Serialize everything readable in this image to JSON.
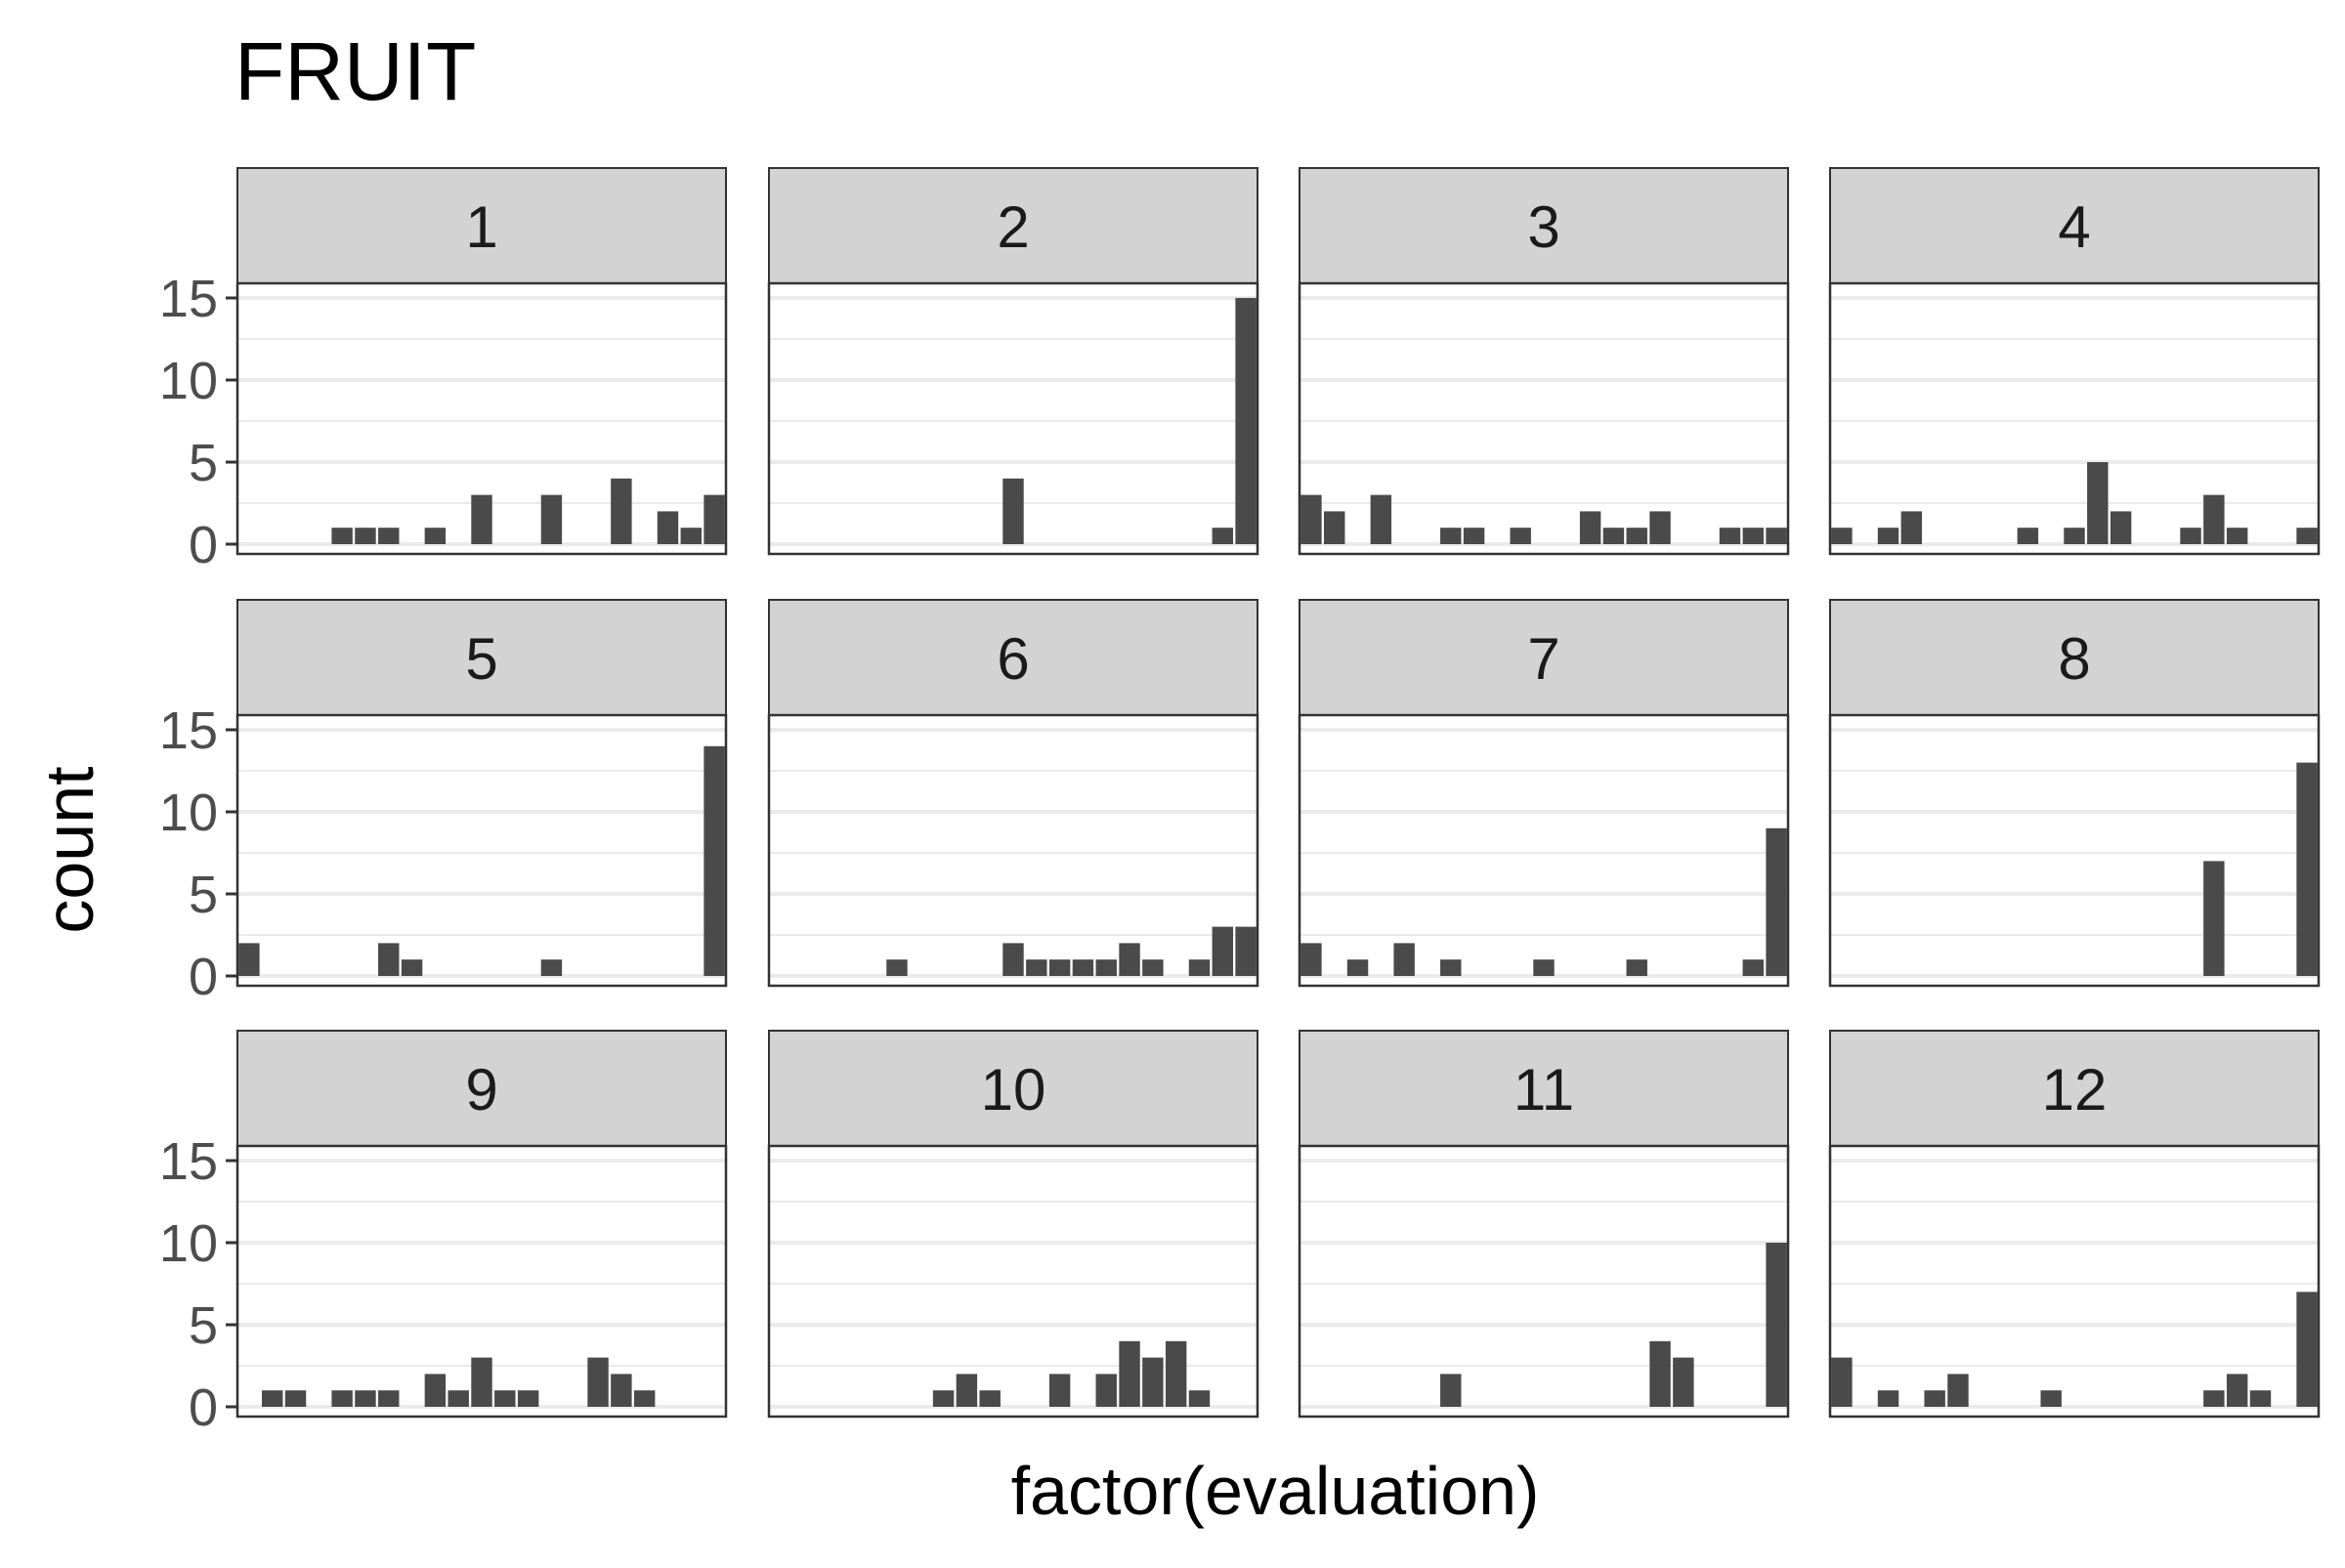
{
  "chart_data": {
    "type": "bar",
    "title": "FRUIT",
    "xlabel": "factor(evaluation)",
    "ylabel": "count",
    "ylim": [
      0,
      15
    ],
    "yticks": [
      0,
      5,
      10,
      15
    ],
    "grid": true,
    "n_categories": 21,
    "facet_rows": 3,
    "facet_cols": 4,
    "bar_color": "#4a4a4a",
    "strip_color": "#d3d3d3",
    "gridline_color": "#ebebeb",
    "facets": [
      {
        "label": "1",
        "values": [
          0,
          0,
          0,
          0,
          1,
          1,
          1,
          0,
          1,
          0,
          3,
          0,
          0,
          3,
          0,
          0,
          4,
          0,
          2,
          1,
          3
        ]
      },
      {
        "label": "2",
        "values": [
          0,
          0,
          0,
          0,
          0,
          0,
          0,
          0,
          0,
          0,
          4,
          0,
          0,
          0,
          0,
          0,
          0,
          0,
          0,
          1,
          15
        ]
      },
      {
        "label": "3",
        "values": [
          3,
          2,
          0,
          3,
          0,
          0,
          1,
          1,
          0,
          1,
          0,
          0,
          2,
          1,
          1,
          2,
          0,
          0,
          1,
          1,
          1
        ]
      },
      {
        "label": "4",
        "values": [
          1,
          0,
          1,
          2,
          0,
          0,
          0,
          0,
          1,
          0,
          1,
          5,
          2,
          0,
          0,
          1,
          3,
          1,
          0,
          0,
          1
        ]
      },
      {
        "label": "5",
        "values": [
          2,
          0,
          0,
          0,
          0,
          0,
          2,
          1,
          0,
          0,
          0,
          0,
          0,
          1,
          0,
          0,
          0,
          0,
          0,
          0,
          14
        ]
      },
      {
        "label": "6",
        "values": [
          0,
          0,
          0,
          0,
          0,
          1,
          0,
          0,
          0,
          0,
          2,
          1,
          1,
          1,
          1,
          2,
          1,
          0,
          1,
          3,
          3
        ]
      },
      {
        "label": "7",
        "values": [
          2,
          0,
          1,
          0,
          2,
          0,
          1,
          0,
          0,
          0,
          1,
          0,
          0,
          0,
          1,
          0,
          0,
          0,
          0,
          1,
          9
        ]
      },
      {
        "label": "8",
        "values": [
          0,
          0,
          0,
          0,
          0,
          0,
          0,
          0,
          0,
          0,
          0,
          0,
          0,
          0,
          0,
          0,
          7,
          0,
          0,
          0,
          13
        ]
      },
      {
        "label": "9",
        "values": [
          0,
          1,
          1,
          0,
          1,
          1,
          1,
          0,
          2,
          1,
          3,
          1,
          1,
          0,
          0,
          3,
          2,
          1,
          0,
          0,
          0
        ]
      },
      {
        "label": "10",
        "values": [
          0,
          0,
          0,
          0,
          0,
          0,
          0,
          1,
          2,
          1,
          0,
          0,
          2,
          0,
          2,
          4,
          3,
          4,
          1,
          0,
          0
        ]
      },
      {
        "label": "11",
        "values": [
          0,
          0,
          0,
          0,
          0,
          0,
          2,
          0,
          0,
          0,
          0,
          0,
          0,
          0,
          0,
          4,
          3,
          0,
          0,
          0,
          10
        ]
      },
      {
        "label": "12",
        "values": [
          3,
          0,
          1,
          0,
          1,
          2,
          0,
          0,
          0,
          1,
          0,
          0,
          0,
          0,
          0,
          0,
          1,
          2,
          1,
          0,
          7
        ]
      }
    ]
  }
}
